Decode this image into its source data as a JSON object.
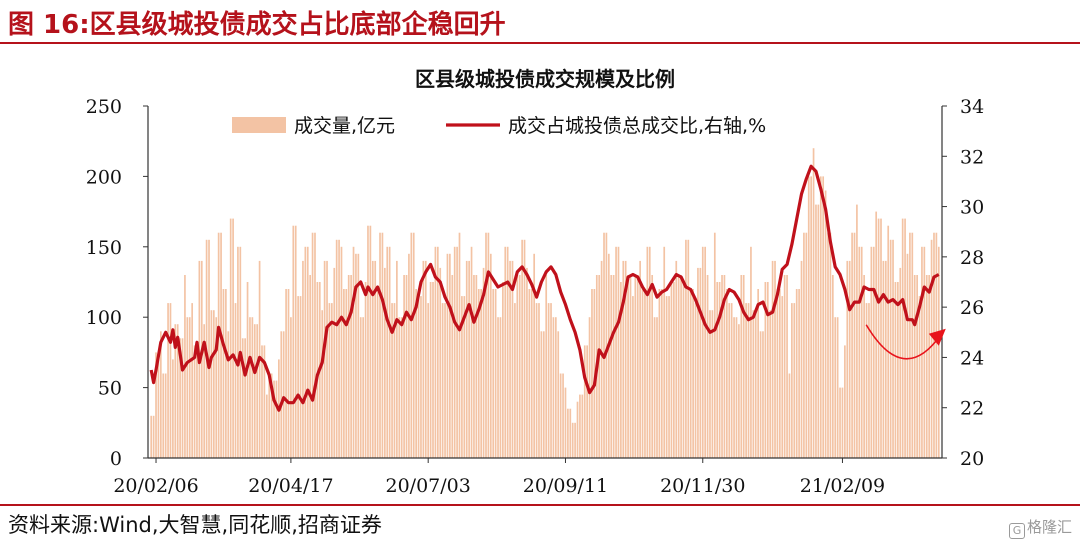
{
  "figure": {
    "title": "图 16:区县级城投债成交占比底部企稳回升",
    "source": "资料来源:Wind,大智慧,同花顺,招商证券",
    "watermark": "格隆汇"
  },
  "chart_data": {
    "type": "bar+line",
    "title": "区县级城投债成交规模及比例",
    "categories_ticks": [
      "20/02/06",
      "20/04/17",
      "20/07/03",
      "20/09/11",
      "20/11/30",
      "21/02/09"
    ],
    "left_axis": {
      "ylim": [
        0,
        250
      ],
      "ticks": [
        0,
        50,
        100,
        150,
        200,
        250
      ]
    },
    "right_axis": {
      "ylim": [
        20,
        34
      ],
      "ticks": [
        20,
        22,
        24,
        26,
        28,
        30,
        32,
        34
      ]
    },
    "legend": {
      "position": "top",
      "bar_label": "成交量,亿元",
      "line_label": "成交占城投债总成交比,右轴,%"
    },
    "colors": {
      "bar": "#f3c3a4",
      "line": "#c0111b",
      "arrow": "#e8141c"
    },
    "series": [
      {
        "name": "成交量,亿元",
        "axis": "left",
        "kind": "bar",
        "values": [
          30,
          75,
          90,
          60,
          110,
          70,
          95,
          85,
          130,
          100,
          110,
          80,
          140,
          95,
          155,
          105,
          100,
          160,
          120,
          90,
          170,
          110,
          150,
          85,
          125,
          100,
          95,
          140,
          80,
          45,
          60,
          55,
          70,
          90,
          120,
          100,
          165,
          115,
          140,
          150,
          130,
          160,
          125,
          105,
          140,
          110,
          135,
          155,
          150,
          120,
          130,
          150,
          145,
          100,
          125,
          165,
          140,
          120,
          160,
          135,
          150,
          110,
          140,
          100,
          130,
          145,
          160,
          120,
          115,
          140,
          110,
          125,
          150,
          135,
          110,
          145,
          130,
          150,
          160,
          115,
          140,
          150,
          130,
          120,
          135,
          160,
          145,
          120,
          100,
          125,
          150,
          140,
          110,
          130,
          155,
          135,
          120,
          145,
          110,
          90,
          130,
          110,
          100,
          90,
          60,
          50,
          35,
          25,
          40,
          45,
          80,
          100,
          120,
          130,
          140,
          160,
          145,
          130,
          150,
          125,
          140,
          130,
          115,
          130,
          140,
          120,
          150,
          130,
          100,
          120,
          150,
          115,
          125,
          140,
          130,
          125,
          155,
          120,
          110,
          135,
          150,
          130,
          105,
          160,
          125,
          130,
          120,
          110,
          100,
          95,
          130,
          110,
          150,
          105,
          120,
          90,
          125,
          105,
          140,
          120,
          115,
          130,
          60,
          110,
          120,
          140,
          160,
          200,
          220,
          180,
          200,
          190,
          160,
          130,
          100,
          50,
          80,
          140,
          160,
          180,
          150,
          130,
          110,
          150,
          175,
          170,
          140,
          165,
          155,
          125,
          135,
          170,
          145,
          160,
          130,
          115,
          150,
          130,
          155,
          160,
          150
        ]
      },
      {
        "name": "成交占城投债总成交比,右轴,%",
        "axis": "right",
        "kind": "line",
        "points": [
          [
            0,
            23.5
          ],
          [
            1,
            23.0
          ],
          [
            2,
            23.5
          ],
          [
            4,
            24.6
          ],
          [
            6,
            25.0
          ],
          [
            8,
            24.6
          ],
          [
            9,
            25.1
          ],
          [
            10,
            24.4
          ],
          [
            11,
            24.8
          ],
          [
            13,
            23.5
          ],
          [
            15,
            23.8
          ],
          [
            18,
            24.0
          ],
          [
            19,
            24.6
          ],
          [
            20,
            23.8
          ],
          [
            22,
            24.6
          ],
          [
            24,
            23.6
          ],
          [
            25,
            24.0
          ],
          [
            27,
            24.3
          ],
          [
            28,
            25.2
          ],
          [
            30,
            24.5
          ],
          [
            32,
            23.9
          ],
          [
            34,
            24.1
          ],
          [
            36,
            23.7
          ],
          [
            37,
            24.2
          ],
          [
            39,
            23.3
          ],
          [
            41,
            24.0
          ],
          [
            43,
            23.4
          ],
          [
            45,
            24.0
          ],
          [
            47,
            23.8
          ],
          [
            49,
            23.3
          ],
          [
            51,
            22.3
          ],
          [
            53,
            21.9
          ],
          [
            55,
            22.4
          ],
          [
            57,
            22.2
          ],
          [
            59,
            22.2
          ],
          [
            61,
            22.5
          ],
          [
            63,
            22.2
          ],
          [
            65,
            22.7
          ],
          [
            67,
            22.3
          ],
          [
            69,
            23.3
          ],
          [
            71,
            23.8
          ],
          [
            73,
            25.2
          ],
          [
            75,
            25.4
          ],
          [
            77,
            25.3
          ],
          [
            79,
            25.6
          ],
          [
            81,
            25.3
          ],
          [
            83,
            25.8
          ],
          [
            85,
            26.8
          ],
          [
            87,
            27.0
          ],
          [
            89,
            26.5
          ],
          [
            90,
            26.8
          ],
          [
            92,
            26.5
          ],
          [
            94,
            26.8
          ],
          [
            96,
            26.3
          ],
          [
            98,
            25.5
          ],
          [
            100,
            25.0
          ],
          [
            102,
            25.5
          ],
          [
            104,
            25.3
          ],
          [
            106,
            25.8
          ],
          [
            108,
            25.5
          ],
          [
            110,
            26.0
          ],
          [
            112,
            27.0
          ],
          [
            114,
            27.4
          ],
          [
            116,
            27.7
          ],
          [
            118,
            27.2
          ],
          [
            120,
            27.0
          ],
          [
            122,
            26.4
          ],
          [
            124,
            26.0
          ],
          [
            126,
            25.4
          ],
          [
            128,
            25.1
          ],
          [
            130,
            25.6
          ],
          [
            132,
            26.1
          ],
          [
            134,
            25.4
          ],
          [
            136,
            25.9
          ],
          [
            138,
            26.5
          ],
          [
            140,
            27.4
          ],
          [
            142,
            27.1
          ],
          [
            144,
            26.8
          ],
          [
            146,
            26.9
          ],
          [
            148,
            27.0
          ],
          [
            150,
            26.7
          ],
          [
            152,
            27.4
          ],
          [
            154,
            27.6
          ],
          [
            156,
            27.3
          ],
          [
            158,
            26.9
          ],
          [
            160,
            26.4
          ],
          [
            162,
            27.0
          ],
          [
            164,
            27.4
          ],
          [
            166,
            27.6
          ],
          [
            168,
            27.3
          ],
          [
            170,
            26.6
          ],
          [
            172,
            26.1
          ],
          [
            174,
            25.5
          ],
          [
            176,
            25.0
          ],
          [
            178,
            24.3
          ],
          [
            180,
            23.2
          ],
          [
            182,
            22.6
          ],
          [
            184,
            22.9
          ],
          [
            186,
            24.3
          ],
          [
            188,
            24.0
          ],
          [
            190,
            24.5
          ],
          [
            192,
            25.0
          ],
          [
            194,
            25.4
          ],
          [
            196,
            26.2
          ],
          [
            198,
            27.2
          ],
          [
            200,
            27.3
          ],
          [
            202,
            27.2
          ],
          [
            204,
            26.8
          ],
          [
            206,
            26.5
          ],
          [
            208,
            26.9
          ],
          [
            210,
            26.4
          ],
          [
            212,
            26.6
          ],
          [
            214,
            26.7
          ],
          [
            216,
            27.0
          ],
          [
            218,
            27.3
          ],
          [
            220,
            27.2
          ],
          [
            222,
            26.8
          ],
          [
            224,
            26.7
          ],
          [
            226,
            26.3
          ],
          [
            228,
            25.8
          ],
          [
            230,
            25.3
          ],
          [
            232,
            25.0
          ],
          [
            234,
            25.1
          ],
          [
            236,
            25.6
          ],
          [
            238,
            26.3
          ],
          [
            240,
            26.7
          ],
          [
            242,
            26.6
          ],
          [
            244,
            26.3
          ],
          [
            246,
            25.8
          ],
          [
            248,
            25.5
          ],
          [
            250,
            25.6
          ],
          [
            252,
            26.1
          ],
          [
            254,
            26.2
          ],
          [
            256,
            25.7
          ],
          [
            258,
            25.8
          ],
          [
            260,
            26.5
          ],
          [
            262,
            27.5
          ],
          [
            264,
            27.7
          ],
          [
            266,
            28.5
          ],
          [
            268,
            29.5
          ],
          [
            270,
            30.5
          ],
          [
            272,
            31.1
          ],
          [
            274,
            31.6
          ],
          [
            276,
            31.4
          ],
          [
            278,
            30.7
          ],
          [
            280,
            29.9
          ],
          [
            282,
            28.6
          ],
          [
            284,
            27.6
          ],
          [
            286,
            27.3
          ],
          [
            288,
            26.7
          ],
          [
            290,
            25.9
          ],
          [
            292,
            26.2
          ],
          [
            294,
            26.2
          ],
          [
            296,
            26.8
          ],
          [
            298,
            26.7
          ],
          [
            300,
            26.7
          ],
          [
            302,
            26.2
          ],
          [
            304,
            26.5
          ],
          [
            306,
            26.2
          ],
          [
            308,
            26.3
          ],
          [
            310,
            26.1
          ],
          [
            312,
            26.3
          ],
          [
            314,
            25.5
          ],
          [
            316,
            25.5
          ],
          [
            317,
            25.3
          ],
          [
            319,
            26.0
          ],
          [
            321,
            26.8
          ],
          [
            323,
            26.6
          ],
          [
            325,
            27.2
          ],
          [
            327,
            27.3
          ]
        ]
      }
    ],
    "x_count": 328,
    "tick_positions": [
      2,
      58,
      115,
      172,
      229,
      287
    ],
    "annotation": {
      "type": "curved-arrow",
      "from_x": 306,
      "to_x": 327,
      "dip_value": 24.0,
      "from_value": 25.3,
      "to_value": 24.9
    }
  }
}
